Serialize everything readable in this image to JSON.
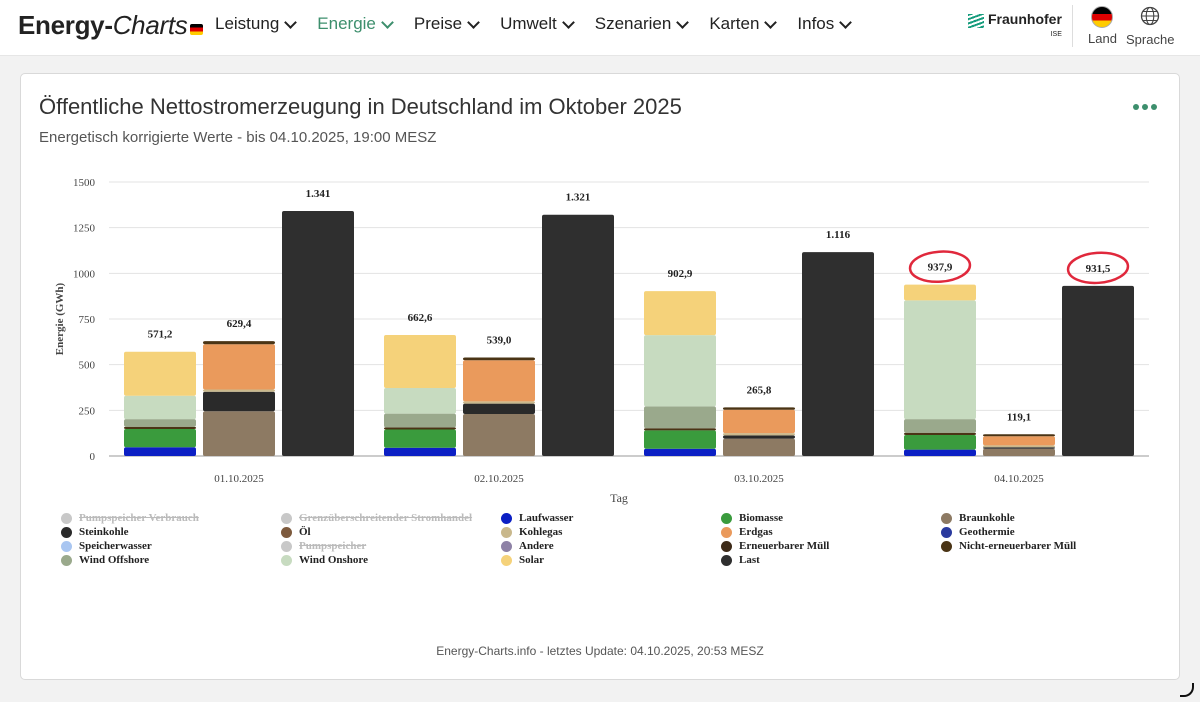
{
  "header": {
    "logo_main": "Energy-",
    "logo_italic": "Charts",
    "nav": [
      {
        "label": "Leistung",
        "active": false
      },
      {
        "label": "Energie",
        "active": true
      },
      {
        "label": "Preise",
        "active": false
      },
      {
        "label": "Umwelt",
        "active": false
      },
      {
        "label": "Szenarien",
        "active": false
      },
      {
        "label": "Karten",
        "active": false
      },
      {
        "label": "Infos",
        "active": false
      }
    ],
    "partner": "Fraunhofer",
    "partner_sub": "ISE",
    "country_label": "Land",
    "language_label": "Sprache"
  },
  "card": {
    "title": "Öffentliche Nettostromerzeugung in Deutschland im Oktober 2025",
    "subtitle": "Energetisch korrigierte Werte - bis 04.10.2025, 19:00 MESZ",
    "footer": "Energy-Charts.info - letztes Update: 04.10.2025, 20:53 MESZ"
  },
  "chart_data": {
    "type": "bar",
    "stacked": true,
    "xlabel": "Tag",
    "ylabel": "Energie (GWh)",
    "ylim": [
      0,
      1500
    ],
    "yticks": [
      0,
      250,
      500,
      750,
      1000,
      1250,
      1500
    ],
    "days": [
      {
        "date": "01.10.2025",
        "bars": [
          {
            "label": "571,2",
            "segments": [
              {
                "series": "Laufwasser",
                "value": 48
              },
              {
                "series": "Biomasse",
                "value": 100
              },
              {
                "series": "Nicht-erneuerbarer Müll",
                "value": 12
              },
              {
                "series": "Wind Offshore",
                "value": 42
              },
              {
                "series": "Wind Onshore",
                "value": 128
              },
              {
                "series": "Solar",
                "value": 241
              }
            ]
          },
          {
            "label": "629,4",
            "segments": [
              {
                "series": "Braunkohle",
                "value": 245
              },
              {
                "series": "Steinkohle",
                "value": 107
              },
              {
                "series": "Kohlegas",
                "value": 12
              },
              {
                "series": "Erdgas",
                "value": 248
              },
              {
                "series": "Nicht-erneuerbarer Müll",
                "value": 17
              }
            ]
          },
          {
            "label": "1.341",
            "segments": [
              {
                "series": "Last",
                "value": 1341
              }
            ]
          }
        ]
      },
      {
        "date": "02.10.2025",
        "bars": [
          {
            "label": "662,6",
            "segments": [
              {
                "series": "Laufwasser",
                "value": 45
              },
              {
                "series": "Biomasse",
                "value": 100
              },
              {
                "series": "Nicht-erneuerbarer Müll",
                "value": 12
              },
              {
                "series": "Wind Offshore",
                "value": 75
              },
              {
                "series": "Wind Onshore",
                "value": 140
              },
              {
                "series": "Solar",
                "value": 290.6
              }
            ]
          },
          {
            "label": "539,0",
            "segments": [
              {
                "series": "Braunkohle",
                "value": 230
              },
              {
                "series": "Steinkohle",
                "value": 57
              },
              {
                "series": "Kohlegas",
                "value": 12
              },
              {
                "series": "Erdgas",
                "value": 225
              },
              {
                "series": "Nicht-erneuerbarer Müll",
                "value": 15
              }
            ]
          },
          {
            "label": "1.321",
            "segments": [
              {
                "series": "Last",
                "value": 1321
              }
            ]
          }
        ]
      },
      {
        "date": "03.10.2025",
        "bars": [
          {
            "label": "902,9",
            "segments": [
              {
                "series": "Laufwasser",
                "value": 40
              },
              {
                "series": "Biomasse",
                "value": 100
              },
              {
                "series": "Nicht-erneuerbarer Müll",
                "value": 12
              },
              {
                "series": "Wind Offshore",
                "value": 120
              },
              {
                "series": "Wind Onshore",
                "value": 390
              },
              {
                "series": "Solar",
                "value": 240.9
              }
            ]
          },
          {
            "label": "265,8",
            "segments": [
              {
                "series": "Braunkohle",
                "value": 95
              },
              {
                "series": "Steinkohle",
                "value": 18
              },
              {
                "series": "Kohlegas",
                "value": 12
              },
              {
                "series": "Erdgas",
                "value": 128
              },
              {
                "series": "Nicht-erneuerbarer Müll",
                "value": 13
              }
            ]
          },
          {
            "label": "1.116",
            "segments": [
              {
                "series": "Last",
                "value": 1116
              }
            ]
          }
        ]
      },
      {
        "date": "04.10.2025",
        "bars": [
          {
            "label": "937,9",
            "segments": [
              {
                "series": "Laufwasser",
                "value": 35
              },
              {
                "series": "Biomasse",
                "value": 80
              },
              {
                "series": "Nicht-erneuerbarer Müll",
                "value": 12
              },
              {
                "series": "Wind Offshore",
                "value": 75
              },
              {
                "series": "Wind Onshore",
                "value": 650
              },
              {
                "series": "Solar",
                "value": 85.9
              }
            ]
          },
          {
            "label": "119,1",
            "segments": [
              {
                "series": "Braunkohle",
                "value": 40
              },
              {
                "series": "Steinkohle",
                "value": 8
              },
              {
                "series": "Kohlegas",
                "value": 10
              },
              {
                "series": "Erdgas",
                "value": 50
              },
              {
                "series": "Nicht-erneuerbarer Müll",
                "value": 11
              }
            ]
          },
          {
            "label": "931,5",
            "segments": [
              {
                "series": "Last",
                "value": 931.5
              }
            ]
          }
        ]
      }
    ],
    "highlighted_labels": [
      "937,9",
      "931,5"
    ],
    "legend": [
      {
        "name": "Pumpspeicher Verbrauch",
        "color": "#c8c8c8",
        "active": false
      },
      {
        "name": "Grenzüberschreitender Stromhandel",
        "color": "#c8c8c8",
        "active": false
      },
      {
        "name": "Laufwasser",
        "color": "#0b1fc4",
        "active": true
      },
      {
        "name": "Biomasse",
        "color": "#3a9b3d",
        "active": true
      },
      {
        "name": "Braunkohle",
        "color": "#8d7a63",
        "active": true
      },
      {
        "name": "Steinkohle",
        "color": "#2a2a2a",
        "active": true
      },
      {
        "name": "Öl",
        "color": "#7d5a3d",
        "active": true
      },
      {
        "name": "Kohlegas",
        "color": "#c9b88c",
        "active": true
      },
      {
        "name": "Erdgas",
        "color": "#ea9a5c",
        "active": true
      },
      {
        "name": "Geothermie",
        "color": "#2a3a9e",
        "active": true
      },
      {
        "name": "Speicherwasser",
        "color": "#a9c6f1",
        "active": true
      },
      {
        "name": "Pumpspeicher",
        "color": "#c8c8c8",
        "active": false
      },
      {
        "name": "Andere",
        "color": "#8e82a6",
        "active": true
      },
      {
        "name": "Erneuerbarer Müll",
        "color": "#3d2a18",
        "active": true
      },
      {
        "name": "Nicht-erneuerbarer Müll",
        "color": "#4a3415",
        "active": true
      },
      {
        "name": "Wind Offshore",
        "color": "#9aa98c",
        "active": true
      },
      {
        "name": "Wind Onshore",
        "color": "#c7dbc0",
        "active": true
      },
      {
        "name": "Solar",
        "color": "#f5d27a",
        "active": true
      },
      {
        "name": "Last",
        "color": "#2f2f2f",
        "active": true
      }
    ]
  }
}
